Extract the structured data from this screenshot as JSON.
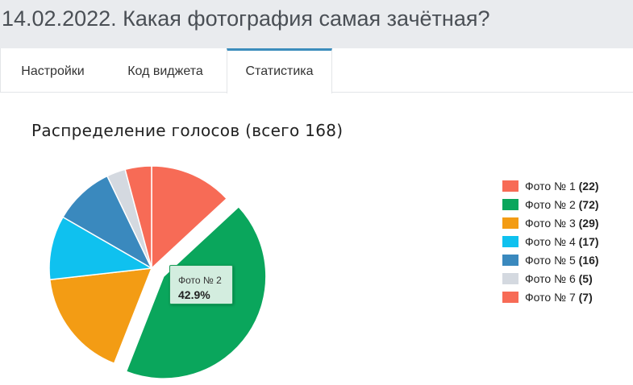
{
  "page": {
    "title": "14.02.2022. Какая фотография самая зачётная?"
  },
  "tabs": [
    {
      "label": "Настройки",
      "active": false
    },
    {
      "label": "Код виджета",
      "active": false
    },
    {
      "label": "Статистика",
      "active": true
    }
  ],
  "chart_data": {
    "type": "pie",
    "title": "Распределение голосов (всего 168)",
    "total": 168,
    "exploded_category": "Фото № 2",
    "categories": [
      "Фото № 1",
      "Фото № 2",
      "Фото № 3",
      "Фото № 4",
      "Фото № 5",
      "Фото № 6",
      "Фото № 7"
    ],
    "values": [
      22,
      72,
      29,
      17,
      16,
      5,
      7
    ],
    "colors": [
      "#f76b56",
      "#0aa65c",
      "#f39c14",
      "#0fc1ef",
      "#3a89be",
      "#d4d9e0",
      "#f76b56"
    ],
    "legend": [
      {
        "label": "Фото № 1",
        "count": "(22)"
      },
      {
        "label": "Фото № 2",
        "count": "(72)"
      },
      {
        "label": "Фото № 3",
        "count": "(29)"
      },
      {
        "label": "Фото № 4",
        "count": "(17)"
      },
      {
        "label": "Фото № 5",
        "count": "(16)"
      },
      {
        "label": "Фото № 6",
        "count": "(5)"
      },
      {
        "label": "Фото № 7",
        "count": "(7)"
      }
    ],
    "legend_position": "right",
    "tooltip": {
      "label": "Фото № 2",
      "value": "42.9%"
    }
  }
}
